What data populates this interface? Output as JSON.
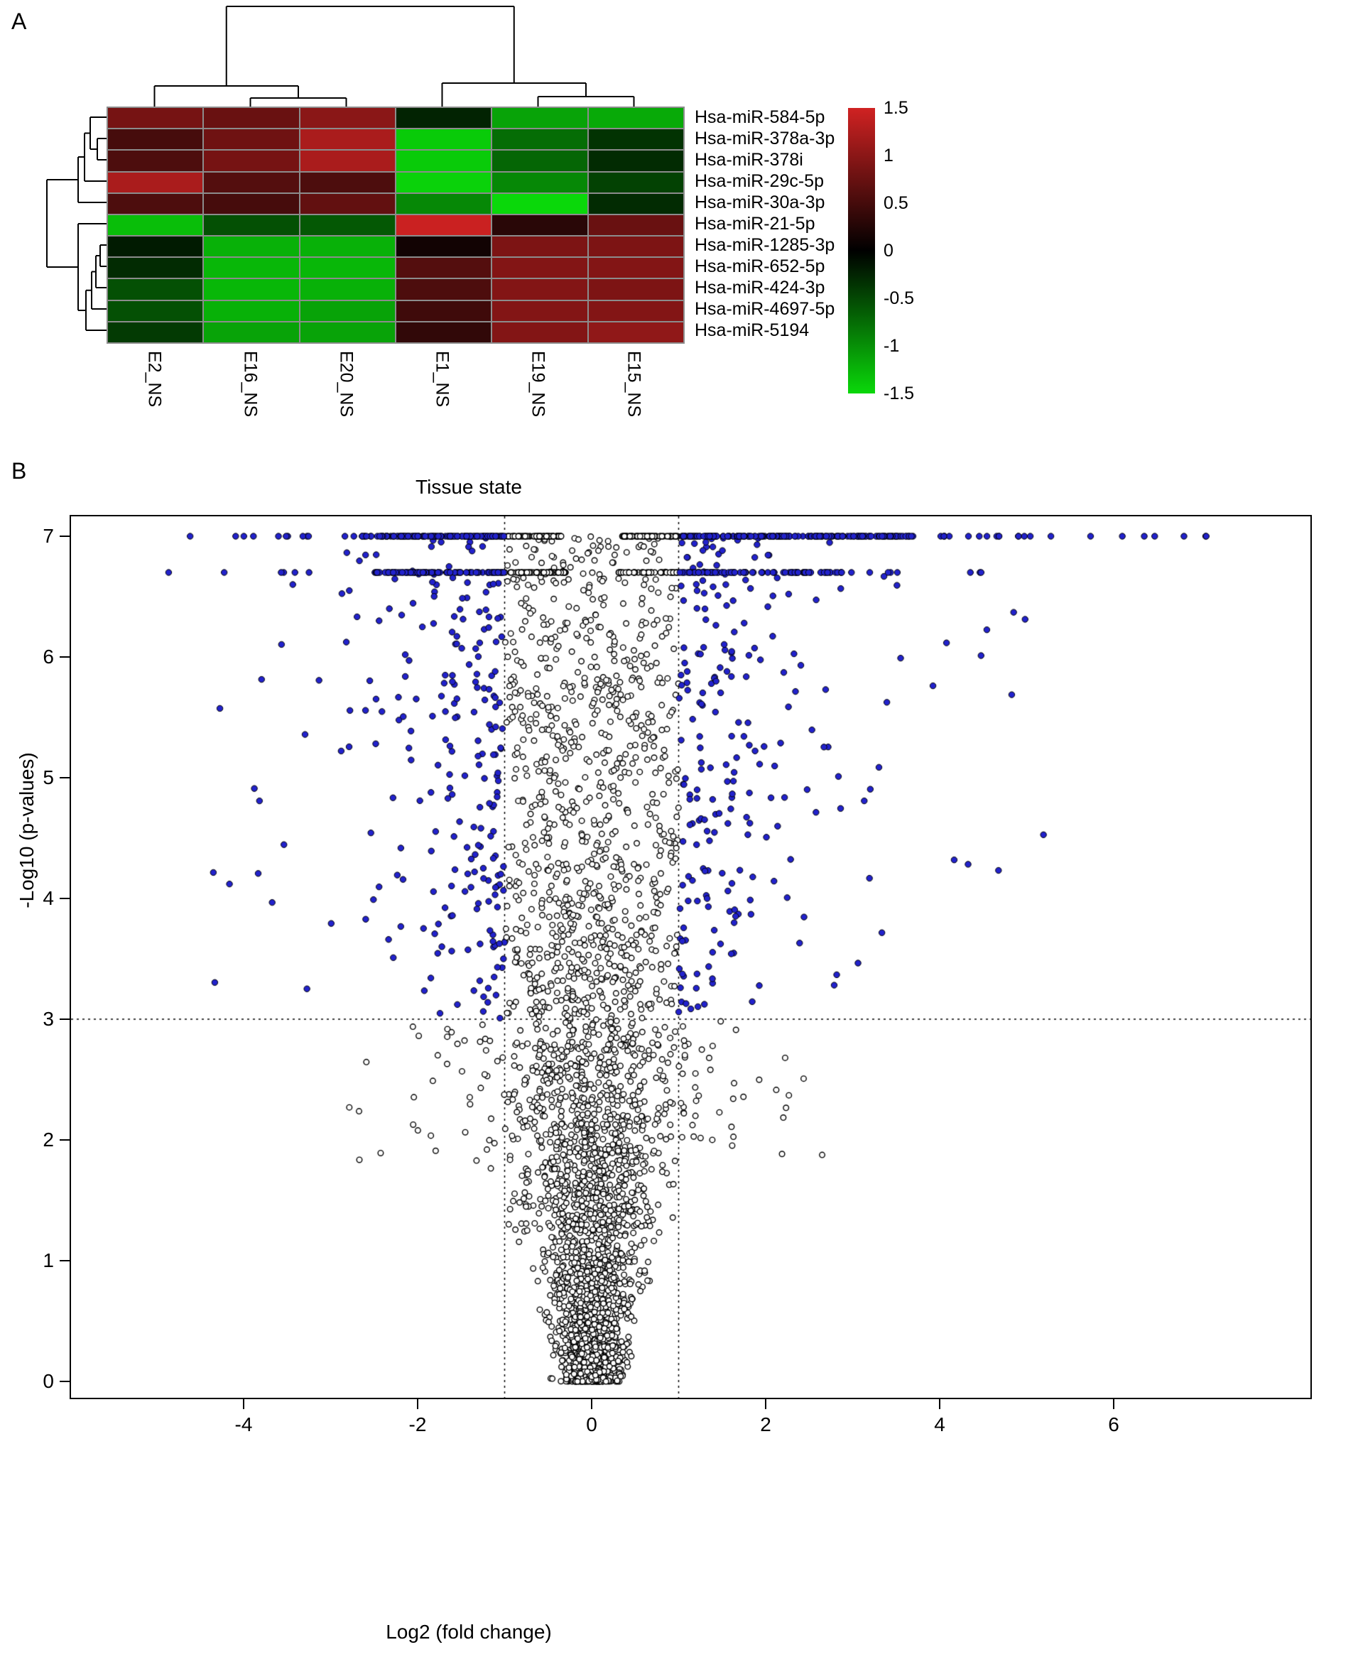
{
  "panels": {
    "a_label": "A",
    "b_label": "B"
  },
  "chart_data": [
    {
      "type": "heatmap",
      "panel": "A",
      "columns": [
        "E2_NS",
        "E16_NS",
        "E20_NS",
        "E1_NS",
        "E19_NS",
        "E15_NS"
      ],
      "rows": [
        "Hsa-miR-584-5p",
        "Hsa-miR-378a-3p",
        "Hsa-miR-378i",
        "Hsa-miR-29c-5p",
        "Hsa-miR-30a-3p",
        "Hsa-miR-21-5p",
        "Hsa-miR-1285-3p",
        "Hsa-miR-652-5p",
        "Hsa-miR-424-3p",
        "Hsa-miR-4697-5p",
        "Hsa-miR-5194"
      ],
      "values": [
        [
          0.8,
          0.7,
          0.95,
          -0.2,
          -1.1,
          -1.15
        ],
        [
          0.45,
          0.75,
          1.2,
          -1.4,
          -0.7,
          -0.3
        ],
        [
          0.5,
          0.8,
          1.2,
          -1.4,
          -0.65,
          -0.25
        ],
        [
          1.2,
          0.55,
          0.5,
          -1.45,
          -0.9,
          -0.4
        ],
        [
          0.5,
          0.45,
          0.65,
          -0.9,
          -1.5,
          -0.25
        ],
        [
          -1.3,
          -0.5,
          -0.55,
          1.45,
          0.25,
          0.7
        ],
        [
          -0.15,
          -1.2,
          -1.2,
          0.1,
          0.85,
          0.85
        ],
        [
          -0.25,
          -1.25,
          -1.25,
          0.55,
          0.9,
          0.9
        ],
        [
          -0.5,
          -1.25,
          -1.2,
          0.5,
          0.9,
          0.85
        ],
        [
          -0.5,
          -1.2,
          -1.1,
          0.4,
          0.9,
          0.9
        ],
        [
          -0.35,
          -1.1,
          -1.1,
          0.3,
          0.9,
          1.0
        ]
      ],
      "color_scale": {
        "min": -1.5,
        "max": 1.5,
        "tick_values": [
          1.5,
          1,
          0.5,
          0,
          -0.5,
          -1,
          -1.5
        ],
        "tick_labels": [
          "1.5",
          "1",
          "0.5",
          "0",
          "-0.5",
          "-1",
          "-1.5"
        ],
        "max_color": "#d02222",
        "mid_color": "#000000",
        "min_color": "#0ad80a"
      },
      "column_clusters": [
        [
          "E2_NS",
          [
            "E16_NS",
            "E20_NS"
          ]
        ],
        [
          "E1_NS",
          [
            "E19_NS",
            "E15_NS"
          ]
        ]
      ],
      "row_clusters": [
        [
          "Hsa-miR-584-5p",
          [
            "Hsa-miR-378a-3p",
            "Hsa-miR-378i"
          ],
          "Hsa-miR-29c-5p",
          "Hsa-miR-30a-3p"
        ],
        [
          "Hsa-miR-21-5p",
          [
            [
              "Hsa-miR-1285-3p",
              "Hsa-miR-652-5p"
            ],
            "Hsa-miR-424-3p",
            "Hsa-miR-4697-5p"
          ],
          "Hsa-miR-5194"
        ]
      ]
    },
    {
      "type": "scatter",
      "subtype": "volcano",
      "panel": "B",
      "title": "Tissue state",
      "xlabel": "Log2 (fold change)",
      "ylabel": "-Log10 (p-values)",
      "x_ticks": [
        -4,
        -2,
        0,
        2,
        4,
        6
      ],
      "y_ticks": [
        0,
        1,
        2,
        3,
        4,
        5,
        6,
        7
      ],
      "xlim": [
        -6,
        8.25
      ],
      "ylim": [
        -0.14,
        7.16
      ],
      "fc_threshold": [
        -1,
        1
      ],
      "pvalue_threshold": 3,
      "pvalue_cap": 7,
      "secondary_band": 6.7,
      "n_core": 3800,
      "n_capped": 558,
      "n_band2": 315,
      "n_points_approx": 5100,
      "seed": 42,
      "colors": {
        "significant": "#2222cc",
        "nonsignificant": "#000000"
      },
      "threshold_lines": "dotted"
    }
  ]
}
